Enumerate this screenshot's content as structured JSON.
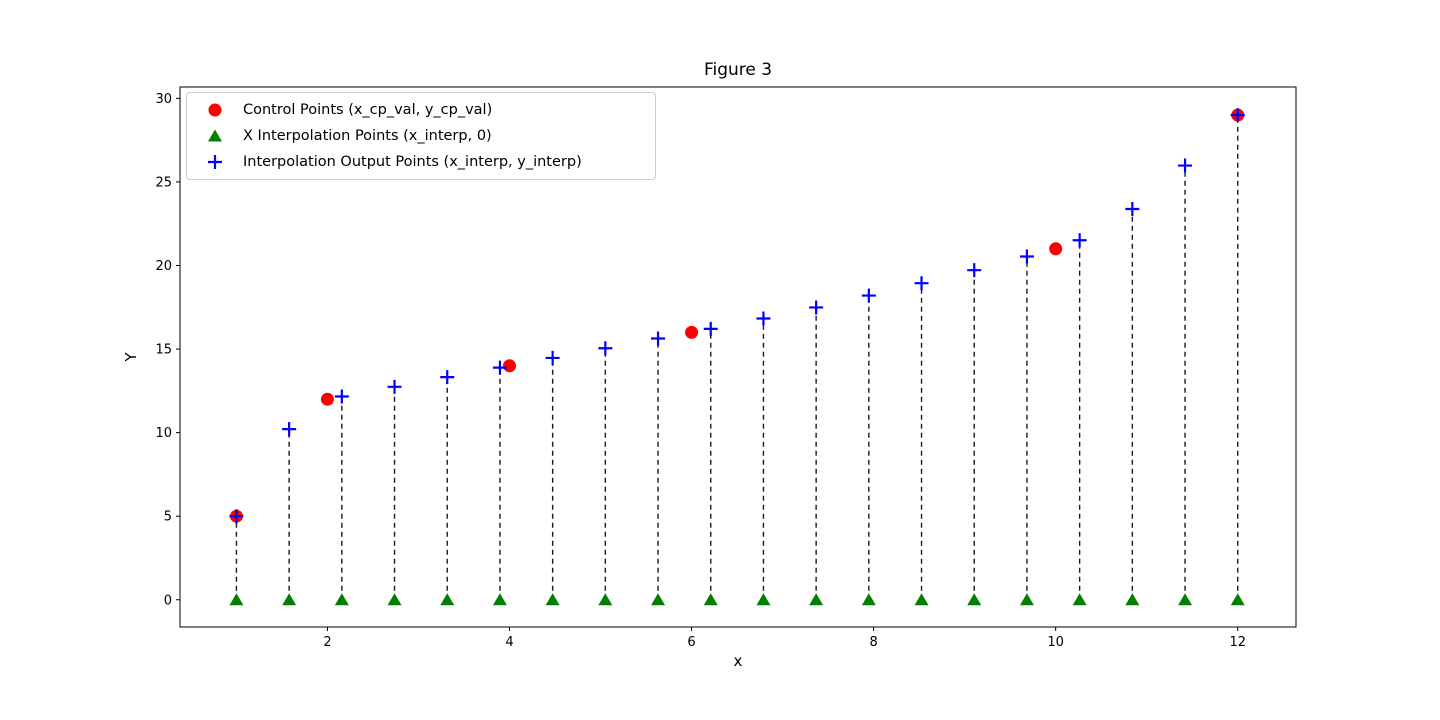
{
  "title": "Figure 3",
  "chart_data": {
    "type": "scatter",
    "title": "Figure 3",
    "xlabel": "x",
    "ylabel": "Y",
    "xlim": [
      0.38,
      12.64
    ],
    "ylim": [
      -1.63,
      30.68
    ],
    "xticks": [
      2,
      4,
      6,
      8,
      10,
      12
    ],
    "yticks": [
      0,
      5,
      10,
      15,
      20,
      25,
      30
    ],
    "grid": false,
    "legend_position": "upper left",
    "series": [
      {
        "name": "Control Points (x_cp_val, y_cp_val)",
        "marker": "circle",
        "color": "#ff0000",
        "x": [
          1,
          2,
          4,
          6,
          10,
          12
        ],
        "y": [
          5,
          12,
          14,
          16,
          21,
          29
        ]
      },
      {
        "name": "X Interpolation Points (x_interp, 0)",
        "marker": "triangle",
        "color": "#008000",
        "x": [
          1.0,
          1.5789,
          2.1579,
          2.7368,
          3.3158,
          3.8947,
          4.4737,
          5.0526,
          5.6316,
          6.2105,
          6.7895,
          7.3684,
          7.9474,
          8.5263,
          9.1053,
          9.6842,
          10.2632,
          10.8421,
          11.4211,
          12.0
        ],
        "y": [
          0,
          0,
          0,
          0,
          0,
          0,
          0,
          0,
          0,
          0,
          0,
          0,
          0,
          0,
          0,
          0,
          0,
          0,
          0,
          0
        ]
      },
      {
        "name": "Interpolation Output Points (x_interp, y_interp)",
        "marker": "plus",
        "color": "#0000ff",
        "x": [
          1.0,
          1.5789,
          2.1579,
          2.7368,
          3.3158,
          3.8947,
          4.4737,
          5.0526,
          5.6316,
          6.2105,
          6.7895,
          7.3684,
          7.9474,
          8.5263,
          9.1053,
          9.6842,
          10.2632,
          10.8421,
          11.4211,
          12.0
        ],
        "y": [
          5.0,
          10.21,
          12.16,
          12.74,
          13.32,
          13.89,
          14.47,
          15.05,
          15.63,
          16.21,
          16.83,
          17.49,
          18.2,
          18.94,
          19.72,
          20.54,
          21.51,
          23.38,
          25.98,
          29.0
        ]
      }
    ],
    "stem_lines": {
      "style": "dashed",
      "color": "#1a1a1a",
      "from_y": 0,
      "note": "vertical dashed line from (x_interp, 0) to (x_interp, y_interp)"
    }
  }
}
